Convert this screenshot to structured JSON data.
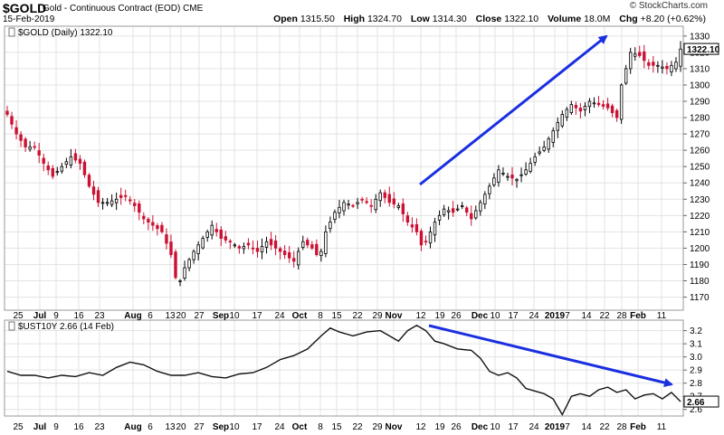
{
  "header": {
    "symbol": "$GOLD",
    "contract": "Gold - Continuous Contract (EOD)",
    "exchange": "CME",
    "date": "15-Feb-2019",
    "brand": "© StockCharts.com",
    "open_label": "Open",
    "open": "1315.50",
    "high_label": "High",
    "high": "1324.70",
    "low_label": "Low",
    "low": "1314.30",
    "close_label": "Close",
    "close": "1322.10",
    "volume_label": "Volume",
    "volume": "18.0M",
    "chg_label": "Chg",
    "chg": "+8.20 (+0.62%)"
  },
  "colors": {
    "up": "#000000",
    "down": "#cc1133",
    "arrow": "#1a2fe0",
    "grid": "#e3e3e3",
    "line": "#111111"
  },
  "chart_data": [
    {
      "type": "candlestick",
      "legend": "$GOLD (Daily) 1322.10",
      "last_value": "1322.10",
      "ylim": [
        1162,
        1336
      ],
      "yticks": [
        1170,
        1180,
        1190,
        1200,
        1210,
        1220,
        1230,
        1240,
        1250,
        1260,
        1270,
        1280,
        1290,
        1300,
        1310,
        1320,
        1330
      ],
      "x_tick_labels": [
        "25",
        "Jul",
        "9",
        "16",
        "23",
        "Aug",
        "6",
        "13",
        "20",
        "27",
        "Sep",
        "10",
        "17",
        "24",
        "Oct",
        "8",
        "15",
        "22",
        "29",
        "Nov",
        "12",
        "19",
        "26",
        "Dec",
        "10",
        "17",
        "24",
        "2019",
        "7",
        "14",
        "22",
        "28",
        "Feb",
        "11"
      ],
      "close_path": [
        [
          0,
          1282
        ],
        [
          2,
          1270
        ],
        [
          4,
          1262
        ],
        [
          6,
          1262
        ],
        [
          8,
          1252
        ],
        [
          10,
          1244
        ],
        [
          12,
          1250
        ],
        [
          14,
          1256
        ],
        [
          16,
          1252
        ],
        [
          18,
          1238
        ],
        [
          20,
          1228
        ],
        [
          22,
          1228
        ],
        [
          24,
          1230
        ],
        [
          26,
          1232
        ],
        [
          28,
          1226
        ],
        [
          30,
          1218
        ],
        [
          32,
          1214
        ],
        [
          34,
          1210
        ],
        [
          36,
          1196
        ],
        [
          37,
          1182
        ],
        [
          38,
          1180
        ],
        [
          39,
          1188
        ],
        [
          41,
          1198
        ],
        [
          43,
          1206
        ],
        [
          45,
          1214
        ],
        [
          47,
          1206
        ],
        [
          49,
          1204
        ],
        [
          51,
          1200
        ],
        [
          53,
          1202
        ],
        [
          55,
          1198
        ],
        [
          57,
          1204
        ],
        [
          59,
          1200
        ],
        [
          61,
          1196
        ],
        [
          63,
          1192
        ],
        [
          65,
          1204
        ],
        [
          67,
          1200
        ],
        [
          68,
          1196
        ],
        [
          69,
          1198
        ],
        [
          70,
          1210
        ],
        [
          72,
          1222
        ],
        [
          74,
          1228
        ],
        [
          76,
          1226
        ],
        [
          78,
          1230
        ],
        [
          80,
          1226
        ],
        [
          82,
          1234
        ],
        [
          84,
          1228
        ],
        [
          86,
          1226
        ],
        [
          88,
          1216
        ],
        [
          90,
          1210
        ],
        [
          91,
          1202
        ],
        [
          92,
          1204
        ],
        [
          94,
          1216
        ],
        [
          96,
          1224
        ],
        [
          98,
          1222
        ],
        [
          100,
          1226
        ],
        [
          102,
          1218
        ],
        [
          104,
          1228
        ],
        [
          106,
          1238
        ],
        [
          108,
          1248
        ],
        [
          110,
          1244
        ],
        [
          112,
          1242
        ],
        [
          114,
          1248
        ],
        [
          116,
          1256
        ],
        [
          118,
          1262
        ],
        [
          120,
          1272
        ],
        [
          122,
          1282
        ],
        [
          124,
          1288
        ],
        [
          126,
          1284
        ],
        [
          128,
          1290
        ],
        [
          130,
          1288
        ],
        [
          132,
          1286
        ],
        [
          134,
          1280
        ],
        [
          135,
          1300
        ],
        [
          137,
          1320
        ],
        [
          139,
          1318
        ],
        [
          141,
          1312
        ],
        [
          143,
          1312
        ],
        [
          145,
          1310
        ],
        [
          147,
          1314
        ],
        [
          148,
          1322
        ]
      ]
    },
    {
      "type": "line",
      "legend": "$UST10Y 2.66 (14 Feb)",
      "last_value": "2.66",
      "ylim": [
        2.55,
        3.28
      ],
      "yticks": [
        2.6,
        2.7,
        2.8,
        2.9,
        3.0,
        3.1,
        3.2
      ],
      "x_tick_labels": [
        "25",
        "Jul",
        "9",
        "16",
        "23",
        "Aug",
        "6",
        "13",
        "20",
        "27",
        "Sep",
        "10",
        "17",
        "24",
        "Oct",
        "8",
        "15",
        "22",
        "29",
        "Nov",
        "12",
        "19",
        "26",
        "Dec",
        "10",
        "17",
        "24",
        "2019",
        "7",
        "14",
        "22",
        "28",
        "Feb",
        "11"
      ],
      "path": [
        [
          0,
          2.89
        ],
        [
          3,
          2.86
        ],
        [
          6,
          2.86
        ],
        [
          9,
          2.84
        ],
        [
          12,
          2.86
        ],
        [
          15,
          2.85
        ],
        [
          18,
          2.88
        ],
        [
          21,
          2.86
        ],
        [
          24,
          2.92
        ],
        [
          27,
          2.96
        ],
        [
          30,
          2.94
        ],
        [
          33,
          2.89
        ],
        [
          36,
          2.86
        ],
        [
          39,
          2.86
        ],
        [
          42,
          2.88
        ],
        [
          45,
          2.85
        ],
        [
          48,
          2.84
        ],
        [
          51,
          2.87
        ],
        [
          54,
          2.88
        ],
        [
          57,
          2.92
        ],
        [
          60,
          2.98
        ],
        [
          63,
          3.01
        ],
        [
          66,
          3.06
        ],
        [
          69,
          3.16
        ],
        [
          71,
          3.22
        ],
        [
          73,
          3.19
        ],
        [
          76,
          3.16
        ],
        [
          79,
          3.19
        ],
        [
          82,
          3.2
        ],
        [
          84,
          3.16
        ],
        [
          86,
          3.12
        ],
        [
          88,
          3.2
        ],
        [
          90,
          3.24
        ],
        [
          92,
          3.2
        ],
        [
          94,
          3.12
        ],
        [
          96,
          3.1
        ],
        [
          99,
          3.06
        ],
        [
          102,
          3.05
        ],
        [
          104,
          2.99
        ],
        [
          106,
          2.89
        ],
        [
          108,
          2.86
        ],
        [
          110,
          2.88
        ],
        [
          112,
          2.84
        ],
        [
          114,
          2.76
        ],
        [
          116,
          2.74
        ],
        [
          118,
          2.72
        ],
        [
          120,
          2.68
        ],
        [
          122,
          2.56
        ],
        [
          124,
          2.7
        ],
        [
          126,
          2.72
        ],
        [
          128,
          2.7
        ],
        [
          130,
          2.75
        ],
        [
          132,
          2.77
        ],
        [
          134,
          2.73
        ],
        [
          136,
          2.75
        ],
        [
          138,
          2.68
        ],
        [
          140,
          2.71
        ],
        [
          142,
          2.72
        ],
        [
          144,
          2.68
        ],
        [
          146,
          2.73
        ],
        [
          148,
          2.66
        ]
      ]
    }
  ]
}
